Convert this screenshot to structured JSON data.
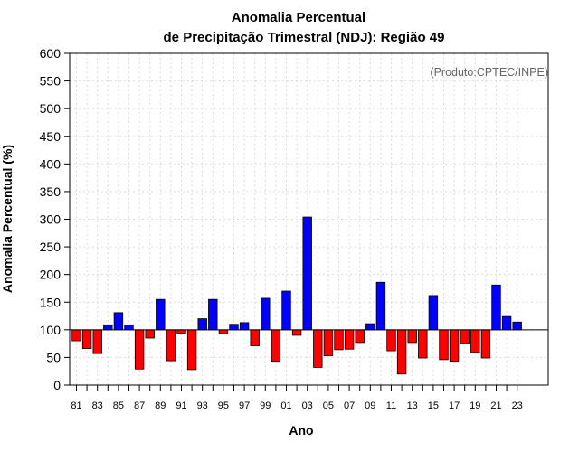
{
  "chart_data": {
    "type": "bar",
    "title": "Anomalia Percentual",
    "subtitle": "de Precipitação Trimestral (NDJ): Região 49",
    "credit": "(Produto:CPTEC/INPE)",
    "xlabel": "Ano",
    "ylabel": "Anomalia Percentual (%)",
    "ylim": [
      0,
      600
    ],
    "yticks": [
      0,
      50,
      100,
      150,
      200,
      250,
      300,
      350,
      400,
      450,
      500,
      550,
      600
    ],
    "baseline": 100,
    "x_tick_labels": [
      "81",
      "83",
      "85",
      "87",
      "89",
      "91",
      "93",
      "95",
      "97",
      "99",
      "01",
      "03",
      "05",
      "07",
      "09",
      "11",
      "13",
      "15",
      "17",
      "19",
      "21",
      "23"
    ],
    "grid": true,
    "colors": {
      "above": "#0000ff",
      "below": "#ff0000"
    },
    "categories": [
      "1981",
      "1982",
      "1983",
      "1984",
      "1985",
      "1986",
      "1987",
      "1988",
      "1989",
      "1990",
      "1991",
      "1992",
      "1993",
      "1994",
      "1995",
      "1996",
      "1997",
      "1998",
      "1999",
      "2000",
      "2001",
      "2002",
      "2003",
      "2004",
      "2005",
      "2006",
      "2007",
      "2008",
      "2009",
      "2010",
      "2011",
      "2012",
      "2013",
      "2014",
      "2015",
      "2016",
      "2017",
      "2018",
      "2019",
      "2020",
      "2021",
      "2022",
      "2023"
    ],
    "values": [
      80,
      66,
      57,
      109,
      131,
      109,
      29,
      85,
      155,
      44,
      94,
      28,
      120,
      155,
      93,
      110,
      113,
      71,
      157,
      43,
      170,
      90,
      304,
      32,
      53,
      64,
      65,
      77,
      111,
      186,
      62,
      20,
      77,
      49,
      162,
      46,
      43,
      75,
      59,
      49,
      181,
      124,
      114
    ]
  }
}
